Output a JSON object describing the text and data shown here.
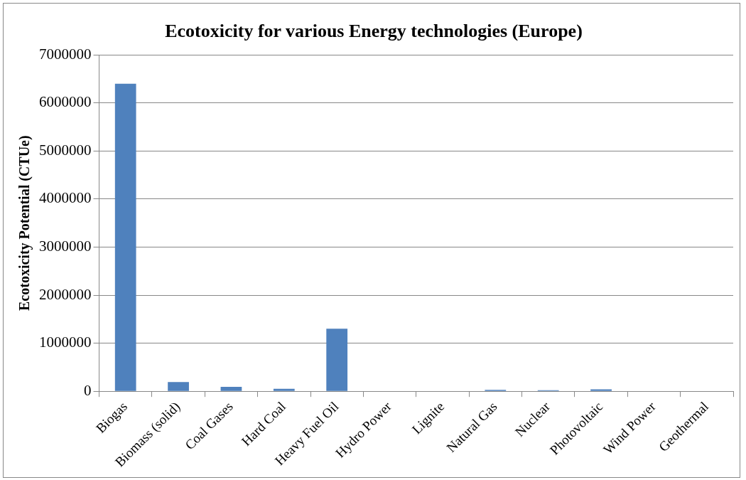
{
  "chart_data": {
    "type": "bar",
    "title": "Ecotoxicity for various Energy technologies (Europe)",
    "ylabel": "Ecotoxicity Potential (CTUe)",
    "categories": [
      "Biogas",
      "Biomass (solid)",
      "Coal Gases",
      "Hard Coal",
      "Heavy Fuel Oil",
      "Hydro Power",
      "Lignite",
      "Natural Gas",
      "Nuclear",
      "Photovoltaic",
      "Wind Power",
      "Geothermal"
    ],
    "values": [
      6400000,
      190000,
      90000,
      50000,
      1300000,
      0,
      0,
      30000,
      20000,
      40000,
      0,
      0
    ],
    "color": "#4f81bd",
    "ylim": [
      0,
      7000000
    ],
    "yticks": [
      0,
      1000000,
      2000000,
      3000000,
      4000000,
      5000000,
      6000000,
      7000000
    ],
    "grid": "y",
    "legend": false
  }
}
